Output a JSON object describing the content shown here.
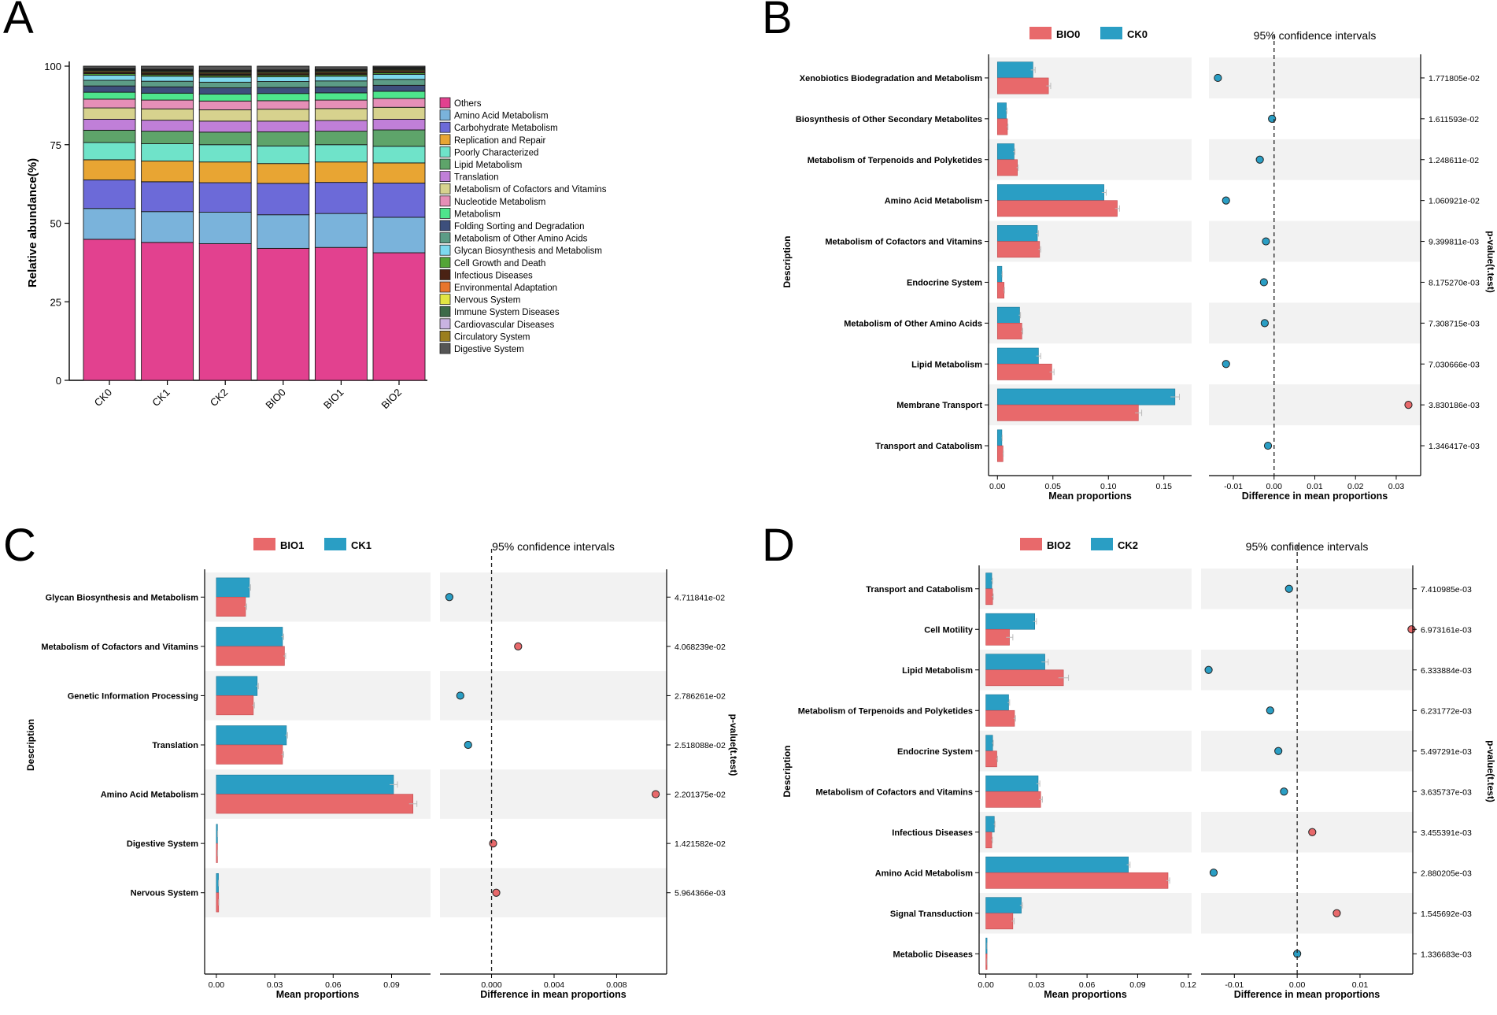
{
  "colors": {
    "bio": "#E8696B",
    "ck": "#2A9EC4",
    "shade": "#F2F2F2"
  },
  "chart_data": [
    {
      "panel": "A",
      "type": "bar",
      "stacked": true,
      "ylabel": "Relative abundance(%)",
      "ylim": [
        0,
        100
      ],
      "yticks": [
        0,
        25,
        50,
        75,
        100
      ],
      "categories": [
        "CK0",
        "CK1",
        "CK2",
        "BIO0",
        "BIO1",
        "BIO2"
      ],
      "series": [
        {
          "name": "Others",
          "color": "#E2418F",
          "values": [
            44.9,
            43.9,
            43.5,
            42.0,
            42.3,
            40.6
          ]
        },
        {
          "name": "Amino Acid Metabolism",
          "color": "#7AB3DB",
          "values": [
            9.8,
            9.8,
            10.0,
            10.7,
            10.8,
            11.3
          ]
        },
        {
          "name": "Carbohydrate Metabolism",
          "color": "#6C6AD8",
          "values": [
            9.1,
            9.5,
            9.4,
            10.0,
            9.9,
            10.9
          ]
        },
        {
          "name": "Replication and Repair",
          "color": "#E8A533",
          "values": [
            6.4,
            6.6,
            6.6,
            6.3,
            6.5,
            6.4
          ]
        },
        {
          "name": "Poorly Characterized",
          "color": "#6FE3C9",
          "values": [
            5.5,
            5.5,
            5.5,
            5.6,
            5.5,
            5.3
          ]
        },
        {
          "name": "Lipid Metabolism",
          "color": "#5EA46A",
          "values": [
            3.9,
            4.0,
            4.0,
            4.5,
            4.3,
            5.2
          ]
        },
        {
          "name": "Translation",
          "color": "#C07FD8",
          "values": [
            3.5,
            3.5,
            3.5,
            3.4,
            3.4,
            3.4
          ]
        },
        {
          "name": "Metabolism of Cofactors and Vitamins",
          "color": "#D7D28E",
          "values": [
            3.6,
            3.6,
            3.6,
            3.8,
            3.8,
            3.8
          ]
        },
        {
          "name": "Nucleotide Metabolism",
          "color": "#E58FB7",
          "values": [
            2.8,
            2.8,
            2.8,
            2.7,
            2.7,
            2.8
          ]
        },
        {
          "name": "Metabolism",
          "color": "#4EE58C",
          "values": [
            2.2,
            2.2,
            2.2,
            2.3,
            2.3,
            2.3
          ]
        },
        {
          "name": "Folding  Sorting and Degradation",
          "color": "#3D4F7C",
          "values": [
            2.0,
            2.0,
            2.0,
            1.9,
            1.9,
            1.9
          ]
        },
        {
          "name": "Metabolism of Other Amino Acids",
          "color": "#5C9C86",
          "values": [
            1.8,
            1.8,
            1.8,
            1.9,
            1.9,
            1.9
          ]
        },
        {
          "name": "Glycan Biosynthesis and Metabolism",
          "color": "#7ED9EE",
          "values": [
            1.6,
            1.6,
            1.6,
            1.5,
            1.5,
            1.6
          ]
        },
        {
          "name": "Cell Growth and Death",
          "color": "#54A537",
          "values": [
            0.5,
            0.5,
            0.5,
            0.5,
            0.5,
            0.5
          ]
        },
        {
          "name": "Infectious Diseases",
          "color": "#4A2214",
          "values": [
            0.4,
            0.4,
            0.4,
            0.4,
            0.4,
            0.4
          ]
        },
        {
          "name": "Environmental Adaptation",
          "color": "#E8752C",
          "values": [
            0.3,
            0.3,
            0.3,
            0.3,
            0.3,
            0.3
          ]
        },
        {
          "name": "Nervous System",
          "color": "#E2E443",
          "values": [
            0.3,
            0.3,
            0.3,
            0.3,
            0.3,
            0.3
          ]
        },
        {
          "name": "Immune System Diseases",
          "color": "#3D6A48",
          "values": [
            0.3,
            0.3,
            0.3,
            0.3,
            0.3,
            0.3
          ]
        },
        {
          "name": "Cardiovascular Diseases",
          "color": "#C9B3E2",
          "values": [
            0.2,
            0.2,
            0.2,
            0.2,
            0.2,
            0.2
          ]
        },
        {
          "name": "Circulatory System",
          "color": "#9B7E1E",
          "values": [
            0.2,
            0.2,
            0.2,
            0.2,
            0.2,
            0.2
          ]
        },
        {
          "name": "Digestive System",
          "color": "#555555",
          "values": [
            0.7,
            1.2,
            1.6,
            1.2,
            0.8,
            0.6
          ]
        }
      ]
    },
    {
      "panel": "B",
      "type": "bar",
      "groups": [
        "BIO0",
        "CK0"
      ],
      "ci_title": "95% confidence intervals",
      "ylabel": "Description",
      "xlabel_left": "Mean proportions",
      "xlabel_right": "Difference in mean proportions",
      "pvalue_label": "p-value(t.test)",
      "left_xlim": [
        -0.008,
        0.175
      ],
      "left_xticks": [
        0.0,
        0.05,
        0.1,
        0.15
      ],
      "left_xtick_labels": [
        "0.00",
        "0.05",
        "0.10",
        "0.15"
      ],
      "right_xlim": [
        -0.016,
        0.036
      ],
      "right_xticks": [
        -0.01,
        0.0,
        0.01,
        0.02,
        0.03
      ],
      "right_xtick_labels": [
        "-0.01",
        "0.00",
        "0.01",
        "0.02",
        "0.03"
      ],
      "categories": [
        "Xenobiotics Biodegradation and Metabolism",
        "Biosynthesis of Other Secondary Metabolites",
        "Metabolism of Terpenoids and Polyketides",
        "Amino Acid Metabolism",
        "Metabolism of Cofactors and Vitamins",
        "Endocrine System",
        "Metabolism of Other Amino Acids",
        "Lipid Metabolism",
        "Membrane Transport",
        "Transport and Catabolism"
      ],
      "group1_values": [
        0.046,
        0.009,
        0.018,
        0.108,
        0.038,
        0.006,
        0.022,
        0.049,
        0.127,
        0.005
      ],
      "group2_values": [
        0.032,
        0.008,
        0.015,
        0.096,
        0.036,
        0.004,
        0.02,
        0.037,
        0.16,
        0.004
      ],
      "group1_err": [
        0.002,
        0.0005,
        0.0008,
        0.002,
        0.001,
        0.0003,
        0.0008,
        0.002,
        0.003,
        0.0003
      ],
      "group2_err": [
        0.002,
        0.0005,
        0.0008,
        0.002,
        0.001,
        0.0003,
        0.0008,
        0.002,
        0.004,
        0.0003
      ],
      "differences": [
        -0.0138,
        -0.0005,
        -0.0035,
        -0.0118,
        -0.002,
        -0.0025,
        -0.0023,
        -0.0118,
        0.033,
        -0.0015
      ],
      "pvalues": [
        "1.771805e-02",
        "1.611593e-02",
        "1.248611e-02",
        "1.060921e-02",
        "9.399811e-03",
        "8.175270e-03",
        "7.308715e-03",
        "7.030666e-03",
        "3.830186e-03",
        "1.346417e-03"
      ]
    },
    {
      "panel": "C",
      "type": "bar",
      "groups": [
        "BIO1",
        "CK1"
      ],
      "ci_title": "95% confidence intervals",
      "ylabel": "Description",
      "xlabel_left": "Mean proportions",
      "xlabel_right": "Difference in mean proportions",
      "pvalue_label": "p-value(t.test)",
      "left_xlim": [
        -0.006,
        0.11
      ],
      "left_xticks": [
        0.0,
        0.03,
        0.06,
        0.09
      ],
      "left_xtick_labels": [
        "0.00",
        "0.03",
        "0.06",
        "0.09"
      ],
      "right_xlim": [
        -0.0033,
        0.0112
      ],
      "right_xticks": [
        0.0,
        0.004,
        0.008
      ],
      "right_xtick_labels": [
        "0.000",
        "0.004",
        "0.008"
      ],
      "categories": [
        "Glycan Biosynthesis and Metabolism",
        "Metabolism of Cofactors and Vitamins",
        "Genetic Information Processing",
        "Translation",
        "Amino Acid Metabolism",
        "Digestive System",
        "Nervous System"
      ],
      "group1_values": [
        0.015,
        0.035,
        0.019,
        0.034,
        0.101,
        0.0006,
        0.0012
      ],
      "group2_values": [
        0.017,
        0.034,
        0.021,
        0.036,
        0.091,
        0.0006,
        0.0011
      ],
      "group1_err": [
        0.0006,
        0.0006,
        0.0006,
        0.0006,
        0.002,
        0.0001,
        0.0001
      ],
      "group2_err": [
        0.0006,
        0.0006,
        0.0006,
        0.0006,
        0.002,
        0.0001,
        0.0001
      ],
      "differences": [
        -0.0027,
        0.0017,
        -0.002,
        -0.0015,
        0.0105,
        0.0001,
        0.0003
      ],
      "pvalues": [
        "4.711841e-02",
        "4.068239e-02",
        "2.786261e-02",
        "2.518088e-02",
        "2.201375e-02",
        "1.421582e-02",
        "5.964366e-03"
      ]
    },
    {
      "panel": "D",
      "type": "bar",
      "groups": [
        "BIO2",
        "CK2"
      ],
      "ci_title": "95% confidence intervals",
      "ylabel": "Description",
      "xlabel_left": "Mean proportions",
      "xlabel_right": "Difference in mean proportions",
      "pvalue_label": "p-value(t.test)",
      "left_xlim": [
        -0.004,
        0.122
      ],
      "left_xticks": [
        0.0,
        0.03,
        0.06,
        0.09,
        0.12
      ],
      "left_xtick_labels": [
        "0.00",
        "0.03",
        "0.06",
        "0.09",
        "0.12"
      ],
      "right_xlim": [
        -0.0153,
        0.0184
      ],
      "right_xticks": [
        -0.01,
        0.0,
        0.01
      ],
      "right_xtick_labels": [
        "-0.01",
        "0.00",
        "0.01"
      ],
      "categories": [
        "Transport and Catabolism",
        "Cell Motility",
        "Lipid Metabolism",
        "Metabolism of Terpenoids and Polyketides",
        "Endocrine System",
        "Metabolism of Cofactors and Vitamins",
        "Infectious Diseases",
        "Amino Acid Metabolism",
        "Signal Transduction",
        "Metabolic Diseases"
      ],
      "group1_values": [
        0.004,
        0.014,
        0.046,
        0.017,
        0.0065,
        0.0325,
        0.0035,
        0.108,
        0.016,
        0.0007
      ],
      "group2_values": [
        0.0035,
        0.029,
        0.035,
        0.0135,
        0.004,
        0.031,
        0.005,
        0.0845,
        0.021,
        0.0007
      ],
      "group1_err": [
        0.0004,
        0.002,
        0.003,
        0.0006,
        0.0004,
        0.001,
        0.0004,
        0.001,
        0.0008,
        0.0001
      ],
      "group2_err": [
        0.0004,
        0.001,
        0.002,
        0.0006,
        0.0004,
        0.001,
        0.0004,
        0.001,
        0.0008,
        0.0001
      ],
      "differences": [
        -0.0013,
        0.0182,
        -0.0141,
        -0.0043,
        -0.003,
        -0.0021,
        0.0024,
        -0.0133,
        0.0063,
        0.0
      ],
      "pvalues": [
        "7.410985e-03",
        "6.973161e-03",
        "6.333884e-03",
        "6.231772e-03",
        "5.497291e-03",
        "3.635737e-03",
        "3.455391e-03",
        "2.880205e-03",
        "1.545692e-03",
        "1.336683e-03"
      ]
    }
  ]
}
